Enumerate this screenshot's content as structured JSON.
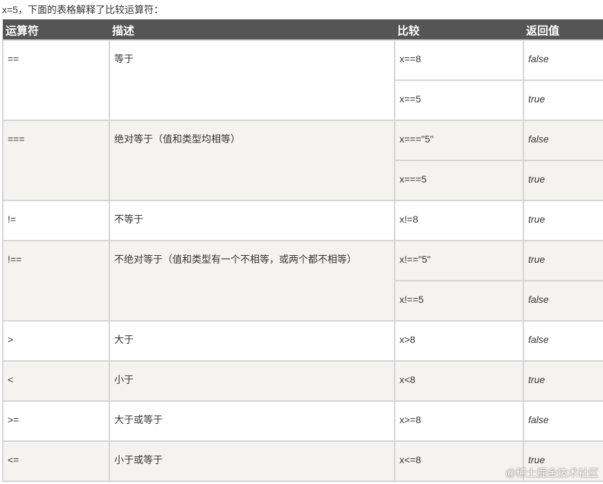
{
  "intro": "x=5，下面的表格解释了比较运算符：",
  "headers": [
    "运算符",
    "描述",
    "比较",
    "返回值"
  ],
  "rows": [
    {
      "op": "==",
      "desc": "等于",
      "cases": [
        {
          "cmp": "x==8",
          "ret": "false"
        },
        {
          "cmp": "x==5",
          "ret": "true"
        }
      ]
    },
    {
      "op": "===",
      "desc": "绝对等于（值和类型均相等）",
      "cases": [
        {
          "cmp": "x===\"5\"",
          "ret": "false"
        },
        {
          "cmp": "x===5",
          "ret": "true"
        }
      ]
    },
    {
      "op": "!=",
      "desc": "不等于",
      "cases": [
        {
          "cmp": "x!=8",
          "ret": "true"
        }
      ]
    },
    {
      "op": "!==",
      "desc": "不绝对等于（值和类型有一个不相等，或两个都不相等）",
      "cases": [
        {
          "cmp": "x!==\"5\"",
          "ret": "true"
        },
        {
          "cmp": "x!==5",
          "ret": "false"
        }
      ]
    },
    {
      "op": ">",
      "desc": "大于",
      "cases": [
        {
          "cmp": "x>8",
          "ret": "false"
        }
      ]
    },
    {
      "op": "<",
      "desc": "小于",
      "cases": [
        {
          "cmp": "x<8",
          "ret": "true"
        }
      ]
    },
    {
      "op": ">=",
      "desc": "大于或等于",
      "cases": [
        {
          "cmp": "x>=8",
          "ret": "false"
        }
      ]
    },
    {
      "op": "<=",
      "desc": "小于或等于",
      "cases": [
        {
          "cmp": "x<=8",
          "ret": "true"
        }
      ]
    }
  ],
  "watermark": "@稀土掘金技术社区"
}
